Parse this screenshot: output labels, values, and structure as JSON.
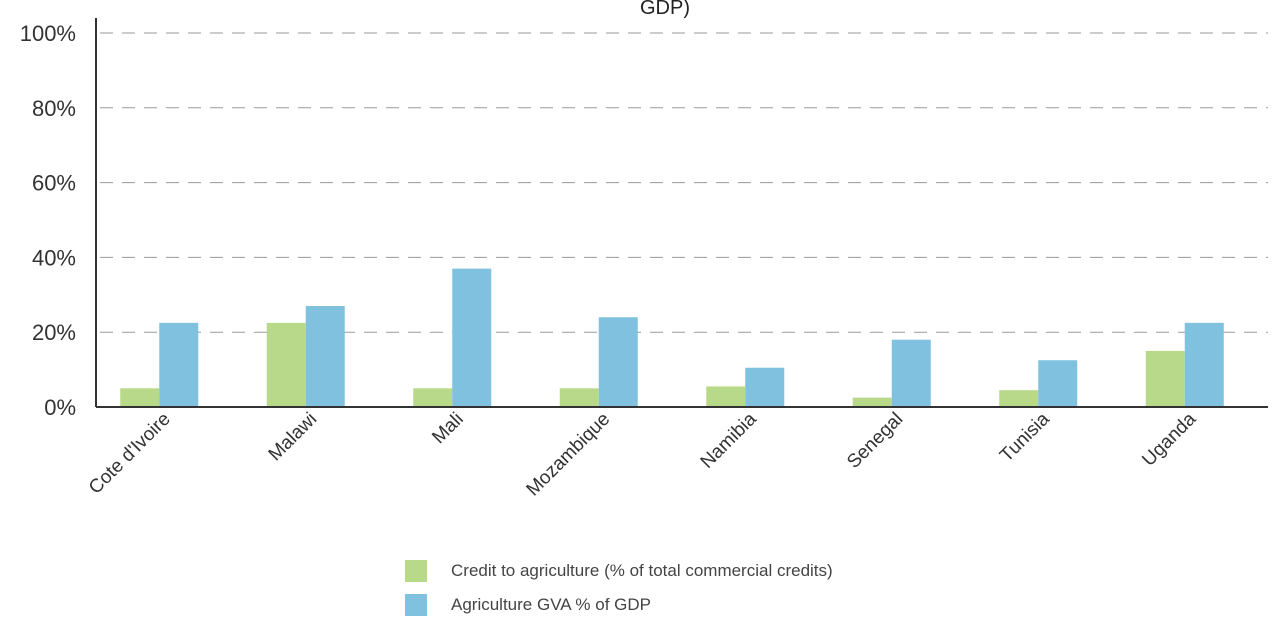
{
  "chart_data": {
    "type": "bar",
    "title": "GDP)",
    "categories": [
      "Cote d'Ivoire",
      "Malawi",
      "Mali",
      "Mozambique",
      "Namibia",
      "Senegal",
      "Tunisia",
      "Uganda"
    ],
    "series": [
      {
        "name": "Credit to agriculture (% of total commercial credits)",
        "color": "#b8d98a",
        "values": [
          5,
          22.5,
          5,
          5,
          5.5,
          2.5,
          4.5,
          15
        ]
      },
      {
        "name": "Agriculture GVA % of GDP",
        "color": "#7fc1de",
        "values": [
          22.5,
          27,
          37,
          24,
          10.5,
          18,
          12.5,
          22.5
        ]
      }
    ],
    "yticks": [
      "0%",
      "20%",
      "40%",
      "60%",
      "80%",
      "100%"
    ],
    "ylim": [
      0,
      100
    ],
    "grid": true,
    "legend_position": "bottom"
  }
}
